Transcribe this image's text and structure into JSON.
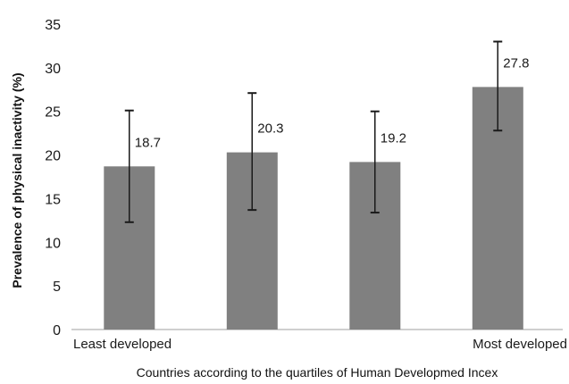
{
  "chart_data": {
    "type": "bar",
    "categories": [
      "",
      "",
      "",
      ""
    ],
    "category_labels_shown": [
      "Least developed",
      "Most developed"
    ],
    "values": [
      18.7,
      20.3,
      19.2,
      27.8
    ],
    "value_labels": [
      "18.7",
      "20.3",
      "19.2",
      "27.8"
    ],
    "error_bars": [
      {
        "low": 12.3,
        "high": 25.1
      },
      {
        "low": 13.7,
        "high": 27.1
      },
      {
        "low": 13.4,
        "high": 25.0
      },
      {
        "low": 22.8,
        "high": 33.0
      }
    ],
    "title": "",
    "xlabel": "Countries according to the quartiles of Human Developmed Incex",
    "ylabel": "Prevalence of physical inactivity (%)",
    "ylim": [
      0,
      35
    ],
    "yticks": [
      0,
      5,
      10,
      15,
      20,
      25,
      30,
      35
    ],
    "grid": false,
    "legend": "none",
    "colors": {
      "bar": "#808080",
      "axis": "#bfbfbf",
      "error": "#1a1a1a"
    }
  }
}
